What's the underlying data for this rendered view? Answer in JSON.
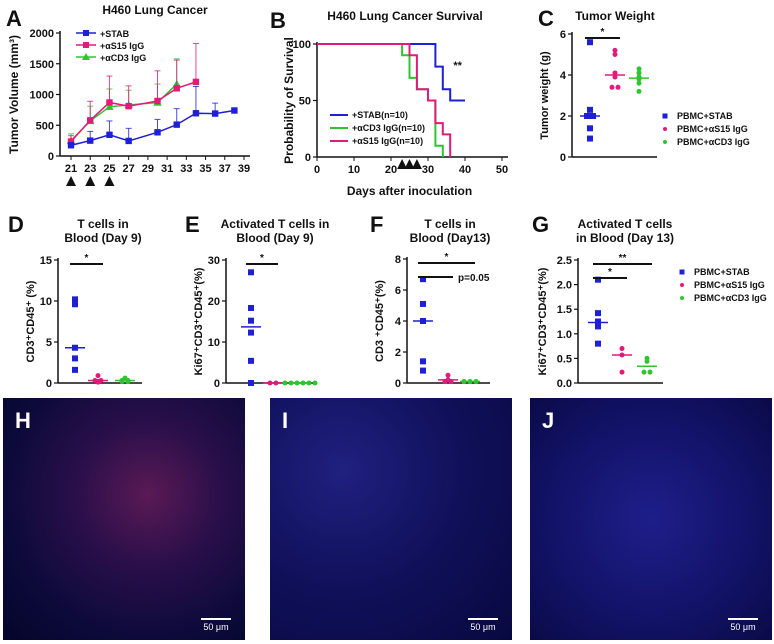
{
  "colors": {
    "stab": "#1f1fd6",
    "s15": "#e3197c",
    "cd3": "#2fc52f",
    "axis": "#111111"
  },
  "chart_data": [
    {
      "panel": "A",
      "type": "line",
      "title": "H460 Lung Cancer",
      "ylabel": "Tumor Volume (mm³)",
      "xlabel": "",
      "ylim": [
        0,
        2000
      ],
      "yticks": [
        0,
        500,
        1000,
        1500,
        2000
      ],
      "xticks": [
        21,
        23,
        25,
        27,
        29,
        31,
        33,
        35,
        37,
        39
      ],
      "xlim": [
        21,
        39
      ],
      "dosing_markers": [
        21,
        23,
        25
      ],
      "legend": "top-left",
      "series": [
        {
          "name": "+STAB",
          "key": "stab",
          "marker": "square",
          "x": [
            21,
            23,
            25,
            27,
            30,
            32,
            34,
            36,
            38
          ],
          "y": [
            175,
            250,
            345,
            245,
            385,
            510,
            695,
            690,
            740
          ],
          "err_upper": [
            210,
            400,
            570,
            450,
            595,
            770,
            1130,
            860,
            780
          ]
        },
        {
          "name": "+αS15 IgG",
          "key": "s15",
          "marker": "square",
          "x": [
            21,
            23,
            25,
            27,
            30,
            32,
            34
          ],
          "y": [
            235,
            580,
            870,
            810,
            895,
            1100,
            1205
          ],
          "err_upper": [
            330,
            890,
            1300,
            1140,
            1385,
            1560,
            1830
          ]
        },
        {
          "name": "+αCD3 IgG",
          "key": "cd3",
          "marker": "triangle",
          "x": [
            21,
            23,
            25,
            27,
            30,
            32
          ],
          "y": [
            250,
            570,
            800,
            830,
            870,
            1170
          ],
          "err_upper": [
            360,
            810,
            1090,
            1070,
            1170,
            1580
          ]
        }
      ]
    },
    {
      "panel": "B",
      "type": "survival",
      "title": "H460 Lung Cancer Survival",
      "ylabel": "Probability of Survival",
      "xlabel": "Days after inoculation",
      "xlim": [
        0,
        50
      ],
      "ylim": [
        0,
        100
      ],
      "xticks": [
        0,
        10,
        20,
        30,
        40,
        50
      ],
      "yticks": [
        0,
        50,
        100
      ],
      "dosing_markers": [
        23,
        25,
        27
      ],
      "annotation": "**",
      "legend": "bottom-left",
      "series": [
        {
          "name": "+STAB(n=10)",
          "key": "stab",
          "points": [
            [
              0,
              100
            ],
            [
              32,
              100
            ],
            [
              32,
              80
            ],
            [
              34,
              80
            ],
            [
              34,
              60
            ],
            [
              36,
              60
            ],
            [
              36,
              50
            ],
            [
              40,
              50
            ]
          ]
        },
        {
          "name": "+αCD3 IgG(n=10)",
          "key": "cd3",
          "points": [
            [
              0,
              100
            ],
            [
              23,
              100
            ],
            [
              23,
              90
            ],
            [
              25,
              90
            ],
            [
              25,
              70
            ],
            [
              27,
              70
            ],
            [
              27,
              60
            ],
            [
              30,
              60
            ],
            [
              30,
              50
            ],
            [
              32,
              50
            ],
            [
              32,
              10
            ],
            [
              34,
              10
            ],
            [
              34,
              0
            ]
          ]
        },
        {
          "name": "+αS15 IgG(n=10)",
          "key": "s15",
          "points": [
            [
              0,
              100
            ],
            [
              25,
              100
            ],
            [
              25,
              90
            ],
            [
              27,
              90
            ],
            [
              27,
              60
            ],
            [
              30,
              60
            ],
            [
              30,
              50
            ],
            [
              32,
              50
            ],
            [
              32,
              30
            ],
            [
              34,
              30
            ],
            [
              34,
              20
            ],
            [
              36,
              20
            ],
            [
              36,
              0
            ]
          ]
        }
      ]
    },
    {
      "panel": "C",
      "type": "scatter",
      "title": "Tumor Weight",
      "ylabel": "Tumor weight (g)",
      "ylim": [
        0,
        6
      ],
      "yticks": [
        0,
        2,
        4,
        6
      ],
      "legend": "right",
      "groups": [
        {
          "name": "PBMC+STAB",
          "key": "stab",
          "marker": "square",
          "values": [
            5.6,
            2.3,
            2.0,
            2.0,
            1.4,
            0.9
          ],
          "center": 2.0
        },
        {
          "name": "PBMC+αS15 IgG",
          "key": "s15",
          "marker": "circle",
          "values": [
            5.2,
            5.0,
            4.1,
            3.9,
            3.4,
            3.4
          ],
          "center": 4.0
        },
        {
          "name": "PBMC+αCD3 IgG",
          "key": "cd3",
          "marker": "circle",
          "values": [
            4.3,
            4.1,
            3.9,
            3.8,
            3.6,
            3.2
          ],
          "center": 3.85
        }
      ],
      "significance": [
        {
          "from": 0,
          "to": 1,
          "label": "*"
        }
      ]
    },
    {
      "panel": "D",
      "type": "scatter",
      "title": [
        "T cells in",
        "Blood (Day 9)"
      ],
      "ylabel": "CD3⁺CD45⁺ (%)",
      "ylim": [
        0,
        15
      ],
      "yticks": [
        0,
        5,
        10,
        15
      ],
      "groups": [
        {
          "key": "stab",
          "marker": "square",
          "values": [
            10.2,
            9.6,
            4.3,
            3.0,
            1.6
          ],
          "center": 4.3
        },
        {
          "key": "s15",
          "marker": "circle",
          "values": [
            0.9,
            0.3,
            0.2,
            0.1,
            0.3
          ],
          "center": 0.3
        },
        {
          "key": "cd3",
          "marker": "circle",
          "values": [
            0.6,
            0.3,
            0.2,
            0.2,
            0.3
          ],
          "center": 0.3
        }
      ],
      "significance": [
        {
          "from": 0,
          "to": 1,
          "label": "*"
        }
      ]
    },
    {
      "panel": "E",
      "type": "scatter",
      "title": [
        "Activated T cells in",
        "Blood (Day 9)"
      ],
      "ylabel": "Ki67⁺CD3⁺CD45⁺(%)",
      "ylim": [
        0,
        30
      ],
      "yticks": [
        0,
        10,
        20,
        30
      ],
      "groups": [
        {
          "key": "stab",
          "marker": "square",
          "values": [
            27,
            18.3,
            15.2,
            12.3,
            5.4,
            0
          ],
          "center": 13.7
        },
        {
          "key": "s15",
          "marker": "circle",
          "values": [
            0,
            0
          ],
          "center": 0
        },
        {
          "key": "cd3",
          "marker": "circle",
          "values": [
            0,
            0,
            0,
            0,
            0,
            0
          ],
          "center": 0
        }
      ],
      "significance": [
        {
          "from": 0,
          "to": 1,
          "label": "*"
        }
      ]
    },
    {
      "panel": "F",
      "type": "scatter",
      "title": [
        "T cells in",
        "Blood (Day13)"
      ],
      "ylabel": "CD3 ⁺CD45⁺(%)",
      "ylim": [
        0,
        8
      ],
      "yticks": [
        0,
        2,
        4,
        6,
        8
      ],
      "groups": [
        {
          "key": "stab",
          "marker": "square",
          "values": [
            6.7,
            5.1,
            4.0,
            1.4,
            0.8
          ],
          "center": 4.0
        },
        {
          "key": "s15",
          "marker": "circle",
          "values": [
            0.5,
            0.2,
            0.1,
            0.1
          ],
          "center": 0.2
        },
        {
          "key": "cd3",
          "marker": "circle",
          "values": [
            0.1,
            0.1,
            0.1
          ],
          "center": 0.1
        }
      ],
      "significance": [
        {
          "from": 0,
          "to": 2,
          "label": "*"
        },
        {
          "from": 0,
          "to": 1,
          "label": "p=0.05"
        }
      ]
    },
    {
      "panel": "G",
      "type": "scatter",
      "title": [
        "Activated T cells",
        "in Blood (Day 13)"
      ],
      "ylabel": "Ki67⁺CD3⁺CD45⁺(%)",
      "ylim": [
        0,
        2.5
      ],
      "yticks": [
        0.0,
        0.5,
        1.0,
        1.5,
        2.0,
        2.5
      ],
      "legend": "right",
      "groups": [
        {
          "name": "PBMC+STAB",
          "key": "stab",
          "marker": "square",
          "values": [
            2.1,
            1.42,
            1.25,
            1.15,
            0.8
          ],
          "center": 1.23
        },
        {
          "name": "PBMC+αS15 IgG",
          "key": "s15",
          "marker": "circle",
          "values": [
            0.7,
            0.57,
            0.22
          ],
          "center": 0.57
        },
        {
          "name": "PBMC+αCD3 IgG",
          "key": "cd3",
          "marker": "circle",
          "values": [
            0.5,
            0.44,
            0.22,
            0.22
          ],
          "center": 0.34
        }
      ],
      "significance": [
        {
          "from": 0,
          "to": 2,
          "label": "**"
        },
        {
          "from": 0,
          "to": 1,
          "label": "*"
        }
      ]
    }
  ],
  "micrographs": [
    {
      "panel": "H",
      "scale_bar": "50 μm",
      "stain": "red-blue"
    },
    {
      "panel": "I",
      "scale_bar": "50 μm",
      "stain": "blue"
    },
    {
      "panel": "J",
      "scale_bar": "50 μm",
      "stain": "blue"
    }
  ]
}
